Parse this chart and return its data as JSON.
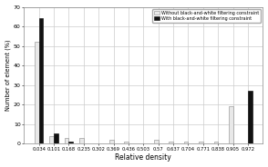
{
  "categories": [
    "0.034",
    "0.101",
    "0.168",
    "0.235",
    "0.302",
    "0.369",
    "0.436",
    "0.503",
    "0.57",
    "0.637",
    "0.704",
    "0.771",
    "0.838",
    "0.905",
    "0.972"
  ],
  "without_bw": [
    52,
    4,
    3,
    3,
    0,
    2,
    1,
    0,
    2,
    1,
    1,
    1,
    1,
    19,
    0
  ],
  "with_bw": [
    64,
    5,
    1,
    0,
    0,
    0,
    0,
    0,
    0,
    0,
    0,
    0,
    0,
    0,
    27
  ],
  "ylabel": "Number of element (%)",
  "xlabel": "Relative density",
  "ylim": [
    0,
    70
  ],
  "yticks": [
    0,
    10,
    20,
    30,
    40,
    50,
    60,
    70
  ],
  "legend_without": "Without black-and-white filtering constraint",
  "legend_with": "With black-and-white filtering constraint",
  "color_without": "#e8e8e8",
  "color_with": "#111111",
  "bar_width": 0.28,
  "background_color": "#ffffff",
  "grid_color": "#cccccc"
}
